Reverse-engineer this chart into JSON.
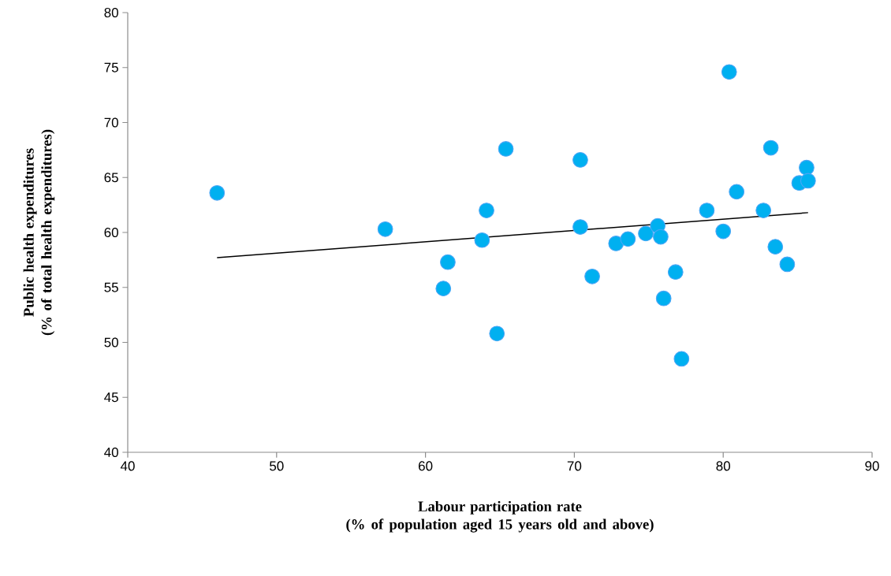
{
  "chart_data": {
    "type": "scatter",
    "xlabel": "Labour participation rate (% of population aged 15 years old and above)",
    "ylabel": "Public health expenditures (% of total health expenditures)",
    "xlim": [
      40,
      90
    ],
    "ylim": [
      40,
      80
    ],
    "xticks": [
      40,
      50,
      60,
      70,
      80,
      90
    ],
    "yticks": [
      40,
      45,
      50,
      55,
      60,
      65,
      70,
      75,
      80
    ],
    "marker": "circle",
    "series": [
      {
        "color": "#00b0f0",
        "x": [
          46.0,
          57.3,
          61.5,
          61.2,
          64.1,
          63.8,
          64.8,
          65.4,
          70.4,
          70.4,
          71.2,
          72.8,
          73.6,
          74.8,
          75.6,
          75.8,
          76.0,
          76.8,
          77.2,
          78.9,
          80.0,
          80.4,
          80.9,
          82.7,
          83.2,
          83.5,
          84.3,
          85.1,
          85.6,
          85.7
        ],
        "values": [
          63.6,
          60.3,
          57.3,
          54.9,
          62.0,
          59.3,
          50.8,
          67.6,
          66.6,
          60.5,
          56.0,
          59.0,
          59.4,
          59.9,
          60.6,
          59.6,
          54.0,
          56.4,
          48.5,
          62.0,
          60.1,
          74.6,
          63.7,
          62.0,
          67.7,
          58.7,
          57.1,
          64.5,
          65.9,
          64.7
        ]
      },
      {
        "type": "line",
        "marker": "none",
        "color": "#000000",
        "x": [
          46.0,
          85.7
        ],
        "values": [
          57.7,
          61.8
        ]
      }
    ]
  }
}
